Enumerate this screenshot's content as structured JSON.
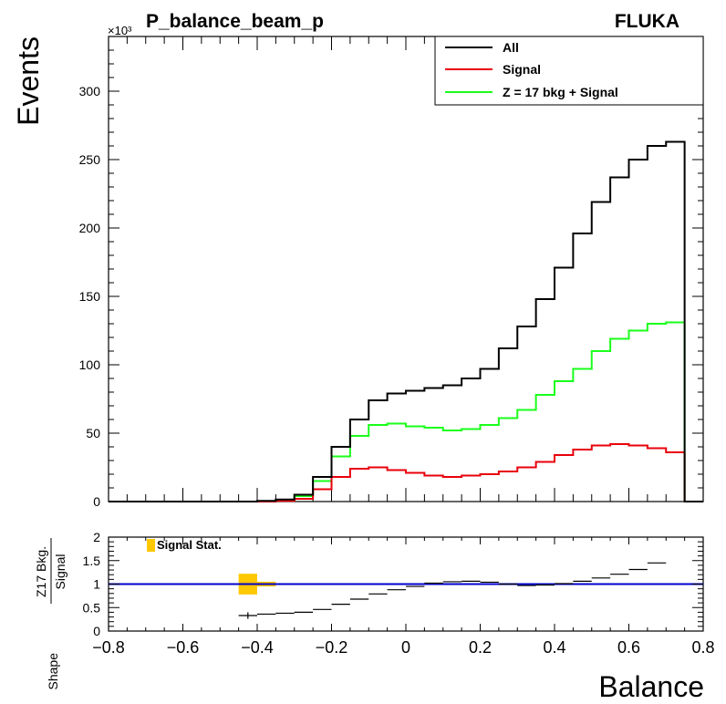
{
  "colors": {
    "all": "#000000",
    "signal": "#e8000b",
    "z17": "#1aff1a",
    "ratio_line": "#0000cc",
    "stat_band": "#ffc800"
  },
  "chart_data": [
    {
      "type": "line",
      "title": "P_balance_beam_p",
      "tag": "FLUKA",
      "xlabel": "",
      "ylabel": "Events",
      "y_multiplier": "×10³",
      "xlim": [
        -0.8,
        0.8
      ],
      "ylim": [
        0,
        340
      ],
      "yticks": [
        0,
        50,
        100,
        150,
        200,
        250,
        300
      ],
      "bin_edges": [
        -0.8,
        -0.75,
        -0.7,
        -0.65,
        -0.6,
        -0.55,
        -0.5,
        -0.45,
        -0.4,
        -0.35,
        -0.3,
        -0.25,
        -0.2,
        -0.15,
        -0.1,
        -0.05,
        0,
        0.05,
        0.1,
        0.15,
        0.2,
        0.25,
        0.3,
        0.35,
        0.4,
        0.45,
        0.5,
        0.55,
        0.6,
        0.65,
        0.7,
        0.75,
        0.8
      ],
      "legend_position": "top-right",
      "series": [
        {
          "name": "All",
          "color_key": "all",
          "values": [
            0,
            0,
            0,
            0,
            0,
            0,
            0,
            0,
            0.5,
            1.5,
            5,
            18,
            40,
            60,
            74,
            79,
            81,
            83,
            85,
            90,
            97,
            112,
            128,
            148,
            171,
            196,
            219,
            237,
            250,
            260,
            263,
            0
          ]
        },
        {
          "name": "Signal",
          "color_key": "signal",
          "values": [
            0,
            0,
            0,
            0,
            0,
            0,
            0,
            0,
            0,
            0.5,
            2,
            9,
            18,
            24,
            25,
            23,
            21,
            19,
            18,
            19,
            20,
            22,
            25,
            29,
            34,
            38,
            41,
            42,
            41,
            39,
            36,
            0
          ]
        },
        {
          "name": "Z = 17 bkg + Signal",
          "color_key": "z17",
          "values": [
            0,
            0,
            0,
            0,
            0,
            0,
            0,
            0,
            0,
            1,
            4,
            15,
            33,
            48,
            56,
            57,
            55,
            54,
            52,
            53,
            56,
            61,
            67,
            78,
            88,
            97,
            110,
            119,
            125,
            130,
            131,
            0
          ]
        }
      ]
    },
    {
      "type": "scatter",
      "xlabel": "Balance",
      "ylabel_prefix": "Shape",
      "ylabel_numerator": "Z17 Bkg.",
      "ylabel_denominator": "Signal",
      "xlim": [
        -0.8,
        0.8
      ],
      "ylim": [
        0,
        2
      ],
      "xticks": [
        -0.8,
        -0.6,
        -0.4,
        -0.2,
        0,
        0.2,
        0.4,
        0.6,
        0.8
      ],
      "xtick_labels": [
        "−0.8",
        "−0.6",
        "−0.4",
        "−0.2",
        "0",
        "0.2",
        "0.4",
        "0.6",
        "0.8"
      ],
      "yticks": [
        0,
        0.5,
        1,
        1.5,
        2
      ],
      "ytick_labels": [
        "0",
        "0.5",
        "1",
        "1.5",
        "2"
      ],
      "reference_line": 1,
      "stat_legend": "Signal Stat.",
      "points": {
        "x": [
          -0.425,
          -0.375,
          -0.325,
          -0.275,
          -0.225,
          -0.175,
          -0.125,
          -0.075,
          -0.025,
          0.025,
          0.075,
          0.125,
          0.175,
          0.225,
          0.275,
          0.325,
          0.375,
          0.425,
          0.475,
          0.525,
          0.575,
          0.625,
          0.675
        ],
        "y": [
          0.33,
          0.36,
          0.38,
          0.4,
          0.46,
          0.57,
          0.68,
          0.79,
          0.88,
          0.95,
          1.02,
          1.05,
          1.06,
          1.04,
          1.0,
          0.97,
          0.98,
          1.01,
          1.06,
          1.13,
          1.21,
          1.31,
          1.45
        ],
        "yerr_lo": [
          0.07,
          0,
          0,
          0,
          0,
          0,
          0,
          0,
          0,
          0,
          0,
          0,
          0,
          0,
          0,
          0,
          0,
          0,
          0,
          0,
          0,
          0,
          0
        ],
        "yerr_hi": [
          0.07,
          0,
          0,
          0,
          0,
          0,
          0,
          0,
          0,
          0,
          0,
          0,
          0,
          0,
          0,
          0,
          0,
          0,
          0,
          0,
          0,
          0,
          0
        ]
      },
      "stat_band": [
        {
          "x0": -0.45,
          "x1": -0.4,
          "y0": 0.78,
          "y1": 1.22
        },
        {
          "x0": -0.4,
          "x1": -0.35,
          "y0": 0.95,
          "y1": 1.05
        }
      ]
    }
  ]
}
